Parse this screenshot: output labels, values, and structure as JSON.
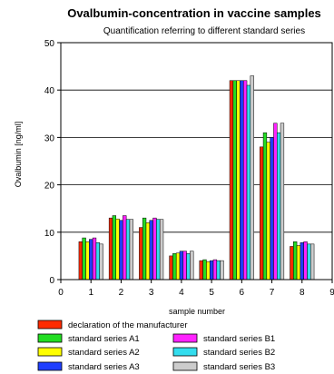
{
  "chart_data": {
    "type": "bar",
    "title": "Ovalbumin-concentration in vaccine samples",
    "subtitle": "Quantification referring to different standard series",
    "xlabel": "sample number",
    "ylabel": "Ovalbumin [ng/ml]",
    "xlim": [
      0,
      9
    ],
    "ylim": [
      0,
      50
    ],
    "x_ticks": [
      0,
      1,
      2,
      3,
      4,
      5,
      6,
      7,
      8,
      9
    ],
    "y_ticks": [
      0,
      10,
      20,
      30,
      40,
      50
    ],
    "grid": "horizontal",
    "legend_position": "bottom",
    "categories": [
      1,
      2,
      3,
      4,
      5,
      6,
      7,
      8
    ],
    "series": [
      {
        "name": "declaration of the manufacturer",
        "color": "#ff2a00",
        "values": [
          8,
          13,
          11,
          5,
          4,
          42,
          28,
          7
        ]
      },
      {
        "name": "standard series A1",
        "color": "#22dd22",
        "values": [
          8.8,
          13.5,
          13,
          5.5,
          4.2,
          42,
          31,
          8
        ]
      },
      {
        "name": "standard series A2",
        "color": "#ffff00",
        "values": [
          8,
          12.8,
          12,
          5.6,
          3.8,
          42,
          29,
          7.2
        ]
      },
      {
        "name": "standard series A3",
        "color": "#1f3fff",
        "values": [
          8.5,
          12.5,
          12.5,
          6,
          4,
          42,
          30,
          7.8
        ]
      },
      {
        "name": "standard series B1",
        "color": "#ff22ff",
        "values": [
          8.8,
          13.5,
          13,
          6,
          4.2,
          42,
          33,
          8
        ]
      },
      {
        "name": "standard series B2",
        "color": "#33ddee",
        "values": [
          7.8,
          12.7,
          12.7,
          5.5,
          4,
          41,
          31,
          7.5
        ]
      },
      {
        "name": "standard series B3",
        "color": "#cccccc",
        "values": [
          7.5,
          12.7,
          12.7,
          6,
          4,
          43,
          33,
          7.5
        ]
      }
    ]
  }
}
